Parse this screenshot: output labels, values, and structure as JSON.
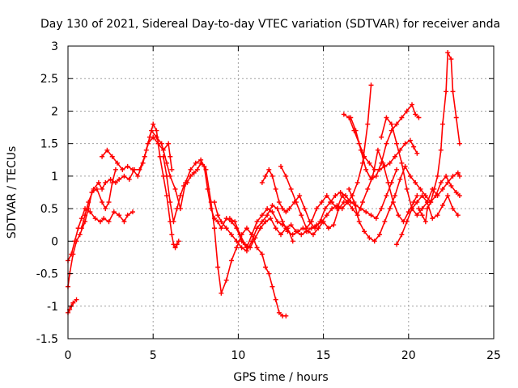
{
  "chart_data": {
    "type": "scatter",
    "title": "Day 130 of 2021, Sidereal Day-to-day VTEC variation (SDTVAR) for receiver anda",
    "xlabel": "GPS time / hours",
    "ylabel": "SDTVAR / TECUs",
    "xlim": [
      0,
      25
    ],
    "ylim": [
      -1.5,
      3
    ],
    "xticks": [
      "0",
      "5",
      "10",
      "15",
      "20",
      "25"
    ],
    "yticks": [
      "3",
      "2.5",
      "2",
      "1.5",
      "1",
      "0.5",
      "0",
      "-0.5",
      "-1",
      "-1.5"
    ],
    "grid": true,
    "marker": "+",
    "color": "#ff0000",
    "series": [
      {
        "name": "s1",
        "x": [
          0.0,
          0.2,
          0.4,
          0.6,
          0.8,
          1.0,
          1.3,
          1.6,
          1.9,
          2.1,
          2.4,
          2.7,
          3.0,
          3.3,
          3.5,
          3.8
        ],
        "y": [
          -0.3,
          -0.2,
          0.0,
          0.2,
          0.35,
          0.5,
          0.45,
          0.35,
          0.3,
          0.35,
          0.3,
          0.45,
          0.4,
          0.3,
          0.4,
          0.45
        ]
      },
      {
        "name": "s2",
        "x": [
          0.0,
          0.1,
          0.3,
          0.5,
          0.7,
          1.0,
          1.2,
          1.4,
          1.7,
          2.0,
          2.2,
          2.4,
          2.6,
          2.8
        ],
        "y": [
          -0.7,
          -0.5,
          -0.2,
          0.0,
          0.1,
          0.3,
          0.5,
          0.75,
          0.8,
          0.6,
          0.5,
          0.6,
          0.9,
          1.1
        ]
      },
      {
        "name": "s3",
        "x": [
          0.0,
          0.1,
          0.2,
          0.3,
          0.5
        ],
        "y": [
          -1.1,
          -1.05,
          -1.0,
          -0.95,
          -0.9
        ]
      },
      {
        "name": "s4",
        "x": [
          0.8,
          1.0,
          1.2,
          1.5,
          1.8,
          2.0,
          2.2,
          2.5,
          2.8,
          3.0,
          3.3,
          3.6,
          3.9,
          4.2,
          4.5,
          4.8,
          5.0,
          5.2,
          5.4,
          5.6,
          5.8,
          6.0,
          6.1,
          6.2,
          6.3,
          6.4,
          6.5
        ],
        "y": [
          0.2,
          0.4,
          0.6,
          0.8,
          0.9,
          0.8,
          0.9,
          0.95,
          0.9,
          0.95,
          1.0,
          0.95,
          1.1,
          1.1,
          1.3,
          1.6,
          1.8,
          1.7,
          1.3,
          1.0,
          0.7,
          0.3,
          0.1,
          -0.05,
          -0.1,
          -0.05,
          0.0
        ]
      },
      {
        "name": "s5",
        "x": [
          2.0,
          2.3,
          2.6,
          2.9,
          3.2,
          3.5,
          3.8,
          4.1,
          4.4,
          4.7,
          5.0,
          5.3,
          5.6,
          5.9,
          6.0,
          6.1
        ],
        "y": [
          1.3,
          1.4,
          1.3,
          1.2,
          1.1,
          1.15,
          1.1,
          1.0,
          1.2,
          1.5,
          1.6,
          1.5,
          1.4,
          1.5,
          1.3,
          1.1
        ]
      },
      {
        "name": "s6",
        "x": [
          4.6,
          4.9,
          5.2,
          5.5,
          5.8,
          6.0,
          6.3,
          6.6,
          6.9,
          7.2,
          7.5,
          7.8,
          8.1,
          8.4,
          8.6,
          8.8,
          9.0,
          9.3,
          9.6,
          9.9,
          10.2,
          10.5,
          10.8,
          11.1,
          11.4,
          11.6,
          11.8,
          12.0,
          12.2,
          12.4,
          12.6,
          12.8
        ],
        "y": [
          1.4,
          1.7,
          1.6,
          1.5,
          1.2,
          1.0,
          0.8,
          0.5,
          0.9,
          1.1,
          1.2,
          1.25,
          1.1,
          0.6,
          0.2,
          -0.4,
          -0.8,
          -0.6,
          -0.3,
          -0.1,
          0.1,
          0.2,
          0.1,
          -0.1,
          -0.2,
          -0.4,
          -0.5,
          -0.7,
          -0.9,
          -1.1,
          -1.15,
          -1.15
        ]
      },
      {
        "name": "s7",
        "x": [
          5.6,
          5.8,
          6.0,
          6.2,
          6.4,
          6.6,
          6.8,
          7.0,
          7.2,
          7.4,
          7.6,
          7.8,
          8.0,
          8.2,
          8.4,
          8.6,
          8.8,
          9.0,
          9.3,
          9.6,
          9.9,
          10.2,
          10.5,
          10.8,
          11.1,
          11.4,
          11.7,
          12.0,
          12.3,
          12.6,
          12.9,
          13.2
        ],
        "y": [
          1.3,
          1.0,
          0.6,
          0.3,
          0.5,
          0.7,
          0.85,
          0.9,
          1.0,
          1.05,
          1.1,
          1.2,
          1.15,
          0.8,
          0.5,
          0.35,
          0.3,
          0.2,
          0.35,
          0.3,
          0.2,
          0.0,
          -0.1,
          0.1,
          0.3,
          0.4,
          0.5,
          0.45,
          0.3,
          0.25,
          0.2,
          0.0
        ]
      },
      {
        "name": "s8",
        "x": [
          8.6,
          8.8,
          9.0,
          9.3,
          9.6,
          9.9,
          10.2,
          10.5,
          10.8,
          11.1,
          11.4,
          11.7,
          12.0,
          12.3,
          12.6,
          12.9,
          13.2,
          13.5,
          13.8,
          14.1,
          14.4,
          14.7,
          15.0,
          15.3,
          15.6,
          15.9,
          16.2
        ],
        "y": [
          0.6,
          0.4,
          0.3,
          0.2,
          0.1,
          0.0,
          -0.1,
          -0.15,
          0.0,
          0.2,
          0.3,
          0.4,
          0.55,
          0.5,
          0.3,
          0.15,
          0.1,
          0.15,
          0.2,
          0.15,
          0.1,
          0.2,
          0.3,
          0.2,
          0.25,
          0.5,
          0.6
        ]
      },
      {
        "name": "s9",
        "x": [
          9.5,
          9.8,
          10.1,
          10.4,
          10.7,
          11.0,
          11.3,
          11.6,
          11.9,
          12.2,
          12.5,
          12.8,
          13.1,
          13.4,
          13.7,
          14.0,
          14.3,
          14.6,
          14.9,
          15.2,
          15.5,
          15.8,
          16.1,
          16.4,
          16.7,
          17.0,
          17.3,
          17.6,
          17.8
        ],
        "y": [
          0.35,
          0.3,
          0.1,
          -0.05,
          -0.1,
          0.05,
          0.2,
          0.3,
          0.35,
          0.2,
          0.1,
          0.2,
          0.25,
          0.15,
          0.1,
          0.15,
          0.2,
          0.25,
          0.3,
          0.4,
          0.5,
          0.55,
          0.5,
          0.6,
          0.7,
          0.9,
          1.2,
          1.8,
          2.4
        ]
      },
      {
        "name": "s10",
        "x": [
          11.4,
          11.6,
          11.8,
          12.0,
          12.2,
          12.4,
          12.6,
          12.8,
          13.0,
          13.3,
          13.6,
          13.9,
          14.2,
          14.5,
          14.8,
          15.1,
          15.4,
          15.7,
          16.0,
          16.3,
          16.6,
          16.9,
          17.2,
          17.5,
          17.8,
          18.1,
          18.4,
          18.7,
          19.0,
          19.3
        ],
        "y": [
          0.9,
          1.0,
          1.1,
          1.0,
          0.8,
          0.6,
          0.5,
          0.45,
          0.5,
          0.6,
          0.7,
          0.5,
          0.3,
          0.2,
          0.3,
          0.5,
          0.6,
          0.7,
          0.75,
          0.7,
          0.6,
          0.55,
          0.5,
          0.45,
          0.4,
          0.35,
          0.5,
          0.7,
          0.9,
          1.1
        ]
      },
      {
        "name": "s11",
        "x": [
          12.5,
          12.8,
          13.1,
          13.4,
          13.7,
          14.0,
          14.3,
          14.6,
          14.9,
          15.2,
          15.5,
          15.8,
          16.1,
          16.4,
          16.7,
          17.0,
          17.3,
          17.6,
          17.9,
          18.2,
          18.5,
          18.8,
          19.1,
          19.4,
          19.7,
          20.0,
          20.3,
          20.5
        ],
        "y": [
          1.15,
          1.0,
          0.8,
          0.6,
          0.4,
          0.2,
          0.3,
          0.5,
          0.6,
          0.7,
          0.6,
          0.5,
          0.7,
          0.6,
          0.5,
          0.4,
          0.6,
          0.8,
          1.0,
          1.4,
          1.2,
          0.9,
          0.6,
          0.4,
          0.3,
          0.45,
          0.6,
          0.7
        ]
      },
      {
        "name": "s12",
        "x": [
          16.2,
          16.5,
          16.8,
          17.1,
          17.4,
          17.7,
          18.0,
          18.3,
          18.6,
          18.9,
          19.2,
          19.5,
          19.8,
          20.1,
          20.3,
          20.5
        ],
        "y": [
          1.95,
          1.9,
          1.7,
          1.5,
          1.3,
          1.2,
          1.1,
          1.1,
          1.15,
          1.2,
          1.3,
          1.4,
          1.5,
          1.55,
          1.45,
          1.35
        ]
      },
      {
        "name": "s13",
        "x": [
          16.6,
          16.9,
          17.2,
          17.5,
          17.8,
          18.1,
          18.4,
          18.7,
          19.0,
          19.3,
          19.6,
          19.9,
          20.2,
          20.4,
          20.6
        ],
        "y": [
          1.9,
          1.7,
          1.4,
          1.1,
          0.95,
          1.0,
          1.2,
          1.5,
          1.7,
          1.8,
          1.9,
          2.0,
          2.1,
          1.95,
          1.9
        ]
      },
      {
        "name": "s14",
        "x": [
          16.5,
          16.8,
          17.1,
          17.4,
          17.7,
          18.0,
          18.3,
          18.6,
          18.9,
          19.2,
          19.5,
          19.8,
          20.1,
          20.4,
          20.7,
          21.0,
          21.3,
          21.6,
          21.9,
          22.2,
          22.5,
          22.8,
          23.0
        ],
        "y": [
          0.8,
          0.6,
          0.3,
          0.15,
          0.05,
          0.0,
          0.1,
          0.3,
          0.5,
          0.7,
          0.95,
          1.15,
          1.0,
          0.9,
          0.8,
          0.7,
          0.6,
          0.7,
          0.9,
          1.0,
          0.85,
          0.75,
          0.7
        ]
      },
      {
        "name": "s15",
        "x": [
          18.4,
          18.7,
          19.0,
          19.3,
          19.6,
          19.9,
          20.2,
          20.5,
          20.8,
          21.1,
          21.4,
          21.7,
          22.0,
          22.3,
          22.6,
          22.9,
          23.0
        ],
        "y": [
          1.6,
          1.9,
          1.8,
          1.5,
          1.2,
          0.8,
          0.5,
          0.4,
          0.5,
          0.6,
          0.8,
          0.7,
          0.8,
          0.9,
          1.0,
          1.05,
          1.0
        ]
      },
      {
        "name": "s16",
        "x": [
          19.3,
          19.6,
          19.9,
          20.2,
          20.5,
          20.8,
          21.1,
          21.4,
          21.7,
          22.0,
          22.3,
          22.6,
          22.9
        ],
        "y": [
          -0.05,
          0.1,
          0.3,
          0.5,
          0.6,
          0.7,
          0.6,
          0.35,
          0.4,
          0.55,
          0.7,
          0.5,
          0.4
        ]
      },
      {
        "name": "s17",
        "x": [
          20.6,
          20.8,
          21.0,
          21.1,
          21.3,
          21.5,
          21.7,
          21.9,
          22.0,
          22.2,
          22.3,
          22.5,
          22.6,
          22.8,
          23.0
        ],
        "y": [
          0.5,
          0.4,
          0.3,
          0.5,
          0.6,
          0.8,
          1.0,
          1.4,
          1.8,
          2.3,
          2.9,
          2.8,
          2.3,
          1.9,
          1.5
        ]
      }
    ]
  }
}
